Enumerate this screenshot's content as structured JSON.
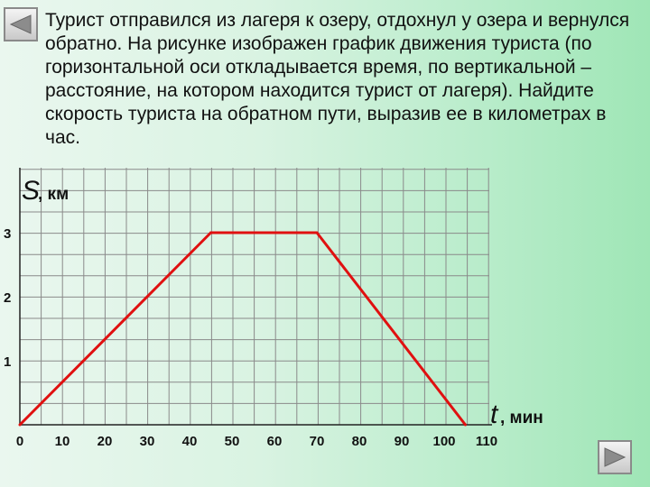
{
  "problem_text": "Турист отправился из лагеря к озеру, отдохнул у озера и вернулся обратно. На рисунке изображен график движения туриста (по горизонтальной оси откладывается время, по вертикальной – расстояние, на котором находится турист от лагеря). Найдите скорость туриста на обратном пути, выразив ее в километрах в час.",
  "nav": {
    "back_icon": "triangle-left-icon",
    "forward_icon": "triangle-right-icon"
  },
  "chart_data": {
    "type": "line",
    "y_axis": {
      "var": "S",
      "unit": ", км",
      "ticks": [
        "1",
        "2",
        "3"
      ],
      "ylim": [
        0,
        3.3
      ]
    },
    "x_axis": {
      "var": "t",
      "unit": ", мин",
      "ticks": [
        "0",
        "10",
        "20",
        "30",
        "40",
        "50",
        "60",
        "70",
        "80",
        "90",
        "100",
        "110"
      ],
      "xlim": [
        0,
        110
      ]
    },
    "grid": true,
    "series": [
      {
        "x": [
          0,
          45,
          70,
          105
        ],
        "y": [
          0,
          3,
          3,
          0
        ],
        "color": "#e01010"
      }
    ]
  }
}
